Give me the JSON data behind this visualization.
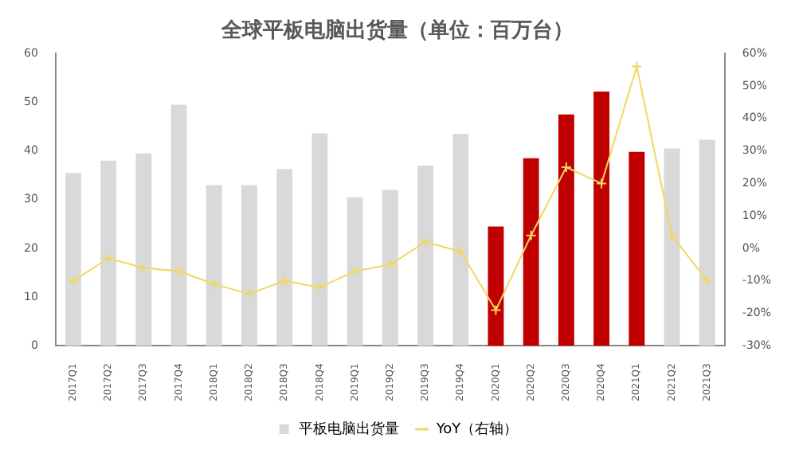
{
  "chart_data": {
    "type": "bar",
    "title": "全球平板电脑出货量（单位：百万台）",
    "categories": [
      "2017Q1",
      "2017Q2",
      "2017Q3",
      "2017Q4",
      "2018Q1",
      "2018Q2",
      "2018Q3",
      "2018Q4",
      "2019Q1",
      "2019Q2",
      "2019Q3",
      "2019Q4",
      "2020Q1",
      "2020Q2",
      "2020Q3",
      "2020Q4",
      "2021Q1",
      "2021Q2",
      "2021Q3"
    ],
    "series": [
      {
        "name": "平板电脑出货量",
        "color": "#d9d9d9",
        "colors": [
          "#d9d9d9",
          "#d9d9d9",
          "#d9d9d9",
          "#d9d9d9",
          "#d9d9d9",
          "#d9d9d9",
          "#d9d9d9",
          "#d9d9d9",
          "#d9d9d9",
          "#d9d9d9",
          "#d9d9d9",
          "#d9d9d9",
          "#c00000",
          "#c00000",
          "#c00000",
          "#c00000",
          "#c00000",
          "#d9d9d9",
          "#d9d9d9"
        ],
        "values": [
          35.5,
          38,
          39.5,
          49.5,
          33,
          33,
          36.3,
          43.6,
          30.5,
          32,
          37,
          43.5,
          24.5,
          38.5,
          47.5,
          52.2,
          39.8,
          40.5,
          42.3
        ]
      },
      {
        "name": "YoY（右轴）",
        "type": "line",
        "axis": "y2",
        "color": "#f0d860",
        "marker": "cross",
        "values": [
          -10,
          -3,
          -6,
          -7,
          -11,
          -14,
          -10,
          -12,
          -7,
          -5,
          2,
          -1,
          -19,
          4,
          25,
          20,
          56,
          4,
          -10
        ]
      }
    ],
    "ylim": [
      0,
      60
    ],
    "yticks": [
      0,
      10,
      20,
      30,
      40,
      50,
      60
    ],
    "y2lim": [
      -30,
      60
    ],
    "y2ticks": [
      {
        "value": -30,
        "label": "-30%"
      },
      {
        "value": -20,
        "label": "-20%"
      },
      {
        "value": -10,
        "label": "-10%"
      },
      {
        "value": 0,
        "label": "0%"
      },
      {
        "value": 10,
        "label": "10%"
      },
      {
        "value": 20,
        "label": "20%"
      },
      {
        "value": 30,
        "label": "30%"
      },
      {
        "value": 40,
        "label": "40%"
      },
      {
        "value": 50,
        "label": "50%"
      },
      {
        "value": 60,
        "label": "60%"
      }
    ],
    "grid": false,
    "legend": "bottom"
  }
}
